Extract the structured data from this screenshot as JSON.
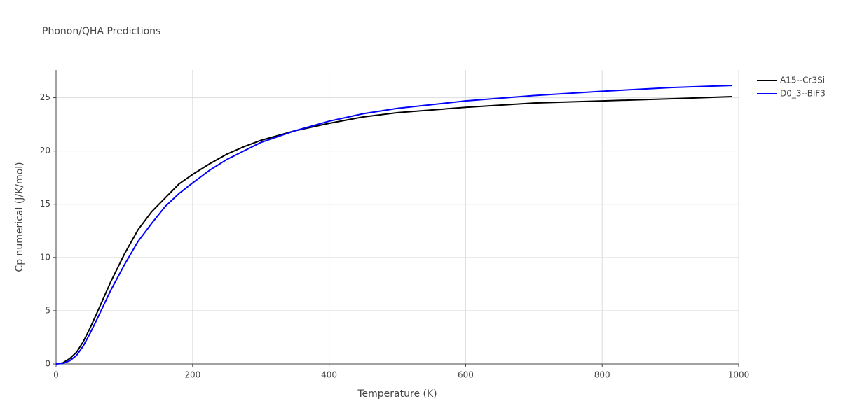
{
  "chart_data": {
    "type": "line",
    "title": "Phonon/QHA Predictions",
    "x_label": "Temperature (K)",
    "y_label": "Cp numerical (J/K/mol)",
    "x": [
      0,
      10,
      20,
      30,
      40,
      50,
      60,
      80,
      100,
      120,
      140,
      160,
      180,
      200,
      225,
      250,
      275,
      300,
      350,
      400,
      450,
      500,
      600,
      700,
      800,
      900,
      990
    ],
    "series": [
      {
        "name": "A15--Cr3Si",
        "color": "#000000",
        "values": [
          0,
          0.1,
          0.5,
          1.1,
          2.1,
          3.4,
          4.8,
          7.7,
          10.3,
          12.6,
          14.3,
          15.6,
          16.9,
          17.8,
          18.8,
          19.7,
          20.4,
          21.0,
          21.9,
          22.6,
          23.2,
          23.6,
          24.1,
          24.5,
          24.7,
          24.9,
          25.1
        ]
      },
      {
        "name": "D0_3--BiF3",
        "color": "#0000ff",
        "values": [
          0,
          0.05,
          0.3,
          0.8,
          1.7,
          2.9,
          4.2,
          6.9,
          9.3,
          11.5,
          13.2,
          14.8,
          16.0,
          17.0,
          18.2,
          19.2,
          20.0,
          20.8,
          21.9,
          22.8,
          23.5,
          24.0,
          24.7,
          25.2,
          25.6,
          25.95,
          26.15
        ]
      }
    ],
    "xlim": [
      0,
      1000
    ],
    "xticks": [
      0,
      200,
      400,
      600,
      800,
      1000
    ],
    "ylim": [
      0,
      27.6
    ],
    "yticks": [
      0,
      5,
      10,
      15,
      20,
      25
    ],
    "grid": true,
    "legend": "outside-right"
  }
}
